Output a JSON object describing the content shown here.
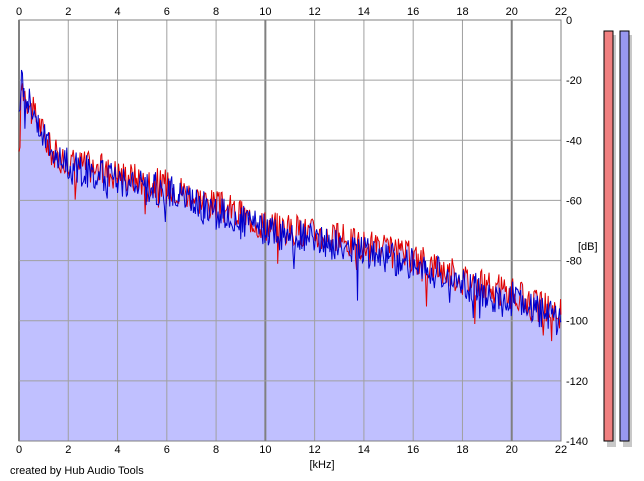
{
  "chart_data": {
    "type": "area",
    "title": "",
    "xlabel": "[kHz]",
    "ylabel": "[dB]",
    "xlim": [
      0,
      22
    ],
    "ylim": [
      -140,
      0
    ],
    "x_ticks": [
      0,
      2,
      4,
      6,
      8,
      10,
      12,
      14,
      16,
      18,
      20,
      22
    ],
    "x_tick_labels": [
      "0",
      "2",
      "4",
      "6",
      "8",
      "10",
      "12",
      "14",
      "16",
      "18",
      "20",
      "22"
    ],
    "y_ticks": [
      0,
      -20,
      -40,
      -60,
      -80,
      -100,
      -120,
      -140
    ],
    "y_tick_labels": [
      "0",
      "-20",
      "-40",
      "-60",
      "-80",
      "-100",
      "-120",
      "-140"
    ],
    "x_axis_position": "top and bottom",
    "y_axis_position": "right",
    "grid": true,
    "colors": {
      "background": "#ffffff",
      "grid": "#a0a0a0",
      "grid_major": "#808080",
      "fill": "#c0c0ff",
      "left_channel": "#e00000",
      "right_channel": "#0000cc",
      "left_meter": "#f08080",
      "right_meter": "#9898f0",
      "meter_shadow": "#c8c8c8"
    },
    "series": [
      {
        "color": "#e00000",
        "x": [
          0,
          0.1,
          0.2,
          0.3,
          0.5,
          0.8,
          1.0,
          1.2,
          1.5,
          2.0,
          2.5,
          3.0,
          3.5,
          4.0,
          4.5,
          5.0,
          5.5,
          6.0,
          6.5,
          7.0,
          7.5,
          8.0,
          8.5,
          9.0,
          9.5,
          10.0,
          10.5,
          11.0,
          11.5,
          12.0,
          12.5,
          13.0,
          13.5,
          14.0,
          14.5,
          15.0,
          15.5,
          16.0,
          16.5,
          17.0,
          17.5,
          18.0,
          18.5,
          19.0,
          19.5,
          20.0,
          20.5,
          21.0,
          21.5,
          22.0
        ],
        "values": [
          -48,
          -22,
          -23,
          -25,
          -30,
          -34,
          -38,
          -42,
          -45,
          -47,
          -48,
          -49,
          -50,
          -51,
          -52,
          -53,
          -54,
          -55,
          -56,
          -58,
          -60,
          -62,
          -63,
          -65,
          -66,
          -68,
          -69,
          -70,
          -70,
          -71,
          -72,
          -73,
          -74,
          -75,
          -76,
          -77,
          -78,
          -79,
          -81,
          -82,
          -84,
          -86,
          -87,
          -89,
          -90,
          -91,
          -93,
          -95,
          -96,
          -98
        ]
      },
      {
        "color": "#0000cc",
        "x": [
          0,
          0.1,
          0.2,
          0.3,
          0.5,
          0.8,
          1.0,
          1.2,
          1.5,
          2.0,
          2.5,
          3.0,
          3.5,
          4.0,
          4.5,
          5.0,
          5.5,
          6.0,
          6.5,
          7.0,
          7.5,
          8.0,
          8.5,
          9.0,
          9.5,
          10.0,
          10.5,
          11.0,
          11.5,
          12.0,
          12.5,
          13.0,
          13.5,
          14.0,
          14.5,
          15.0,
          15.5,
          16.0,
          16.5,
          17.0,
          17.5,
          18.0,
          18.5,
          19.0,
          19.5,
          20.0,
          20.5,
          21.0,
          21.5,
          22.0
        ],
        "values": [
          -35,
          -20,
          -21,
          -24,
          -29,
          -34,
          -38,
          -42,
          -45,
          -48,
          -50,
          -51,
          -52,
          -53,
          -54,
          -55,
          -56,
          -57,
          -58,
          -60,
          -62,
          -64,
          -65,
          -67,
          -68,
          -70,
          -71,
          -72,
          -72,
          -73,
          -74,
          -75,
          -76,
          -77,
          -78,
          -79,
          -80,
          -81,
          -83,
          -84,
          -86,
          -88,
          -89,
          -91,
          -94,
          -92,
          -95,
          -97,
          -98,
          -100
        ]
      }
    ]
  },
  "axes": {
    "xlabel": "[kHz]",
    "ylabel": "[dB]"
  },
  "credit": "created by Hub Audio Tools",
  "meters": {
    "left_color": "#f08080",
    "right_color": "#9898f0"
  }
}
